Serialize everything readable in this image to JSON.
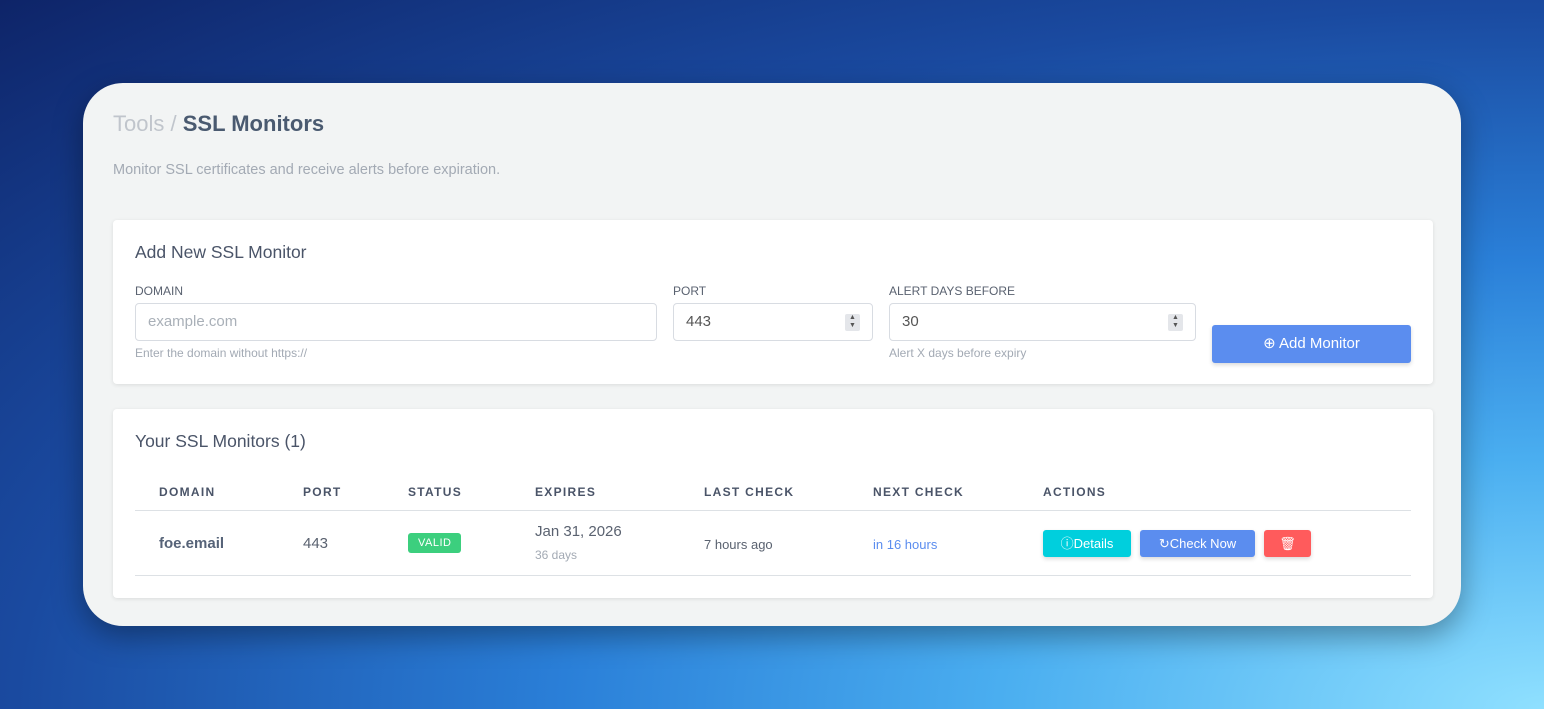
{
  "breadcrumb": {
    "parent": "Tools",
    "separator": "/",
    "current": "SSL Monitors"
  },
  "subtitle": "Monitor SSL certificates and receive alerts before expiration.",
  "add_form": {
    "title": "Add New SSL Monitor",
    "domain_label": "DOMAIN",
    "domain_placeholder": "example.com",
    "domain_hint": "Enter the domain without https://",
    "port_label": "PORT",
    "port_value": "443",
    "alert_label": "ALERT DAYS BEFORE",
    "alert_value": "30",
    "alert_hint": "Alert X days before expiry",
    "submit_label": "Add Monitor"
  },
  "monitors": {
    "title": "Your SSL Monitors (1)",
    "columns": [
      "DOMAIN",
      "PORT",
      "STATUS",
      "EXPIRES",
      "LAST CHECK",
      "NEXT CHECK",
      "ACTIONS"
    ],
    "rows": [
      {
        "domain": "foe.email",
        "port": "443",
        "status": "VALID",
        "expires": "Jan 31, 2026",
        "expires_in": "36 days",
        "last_check": "7 hours ago",
        "next_check": "in 16 hours",
        "details_label": "Details",
        "check_label": "Check Now"
      }
    ]
  },
  "colors": {
    "valid": "#3ccf7e",
    "details": "#00cfdd",
    "check": "#5b8def",
    "delete": "#ff5b5c",
    "link": "#5b8def"
  }
}
